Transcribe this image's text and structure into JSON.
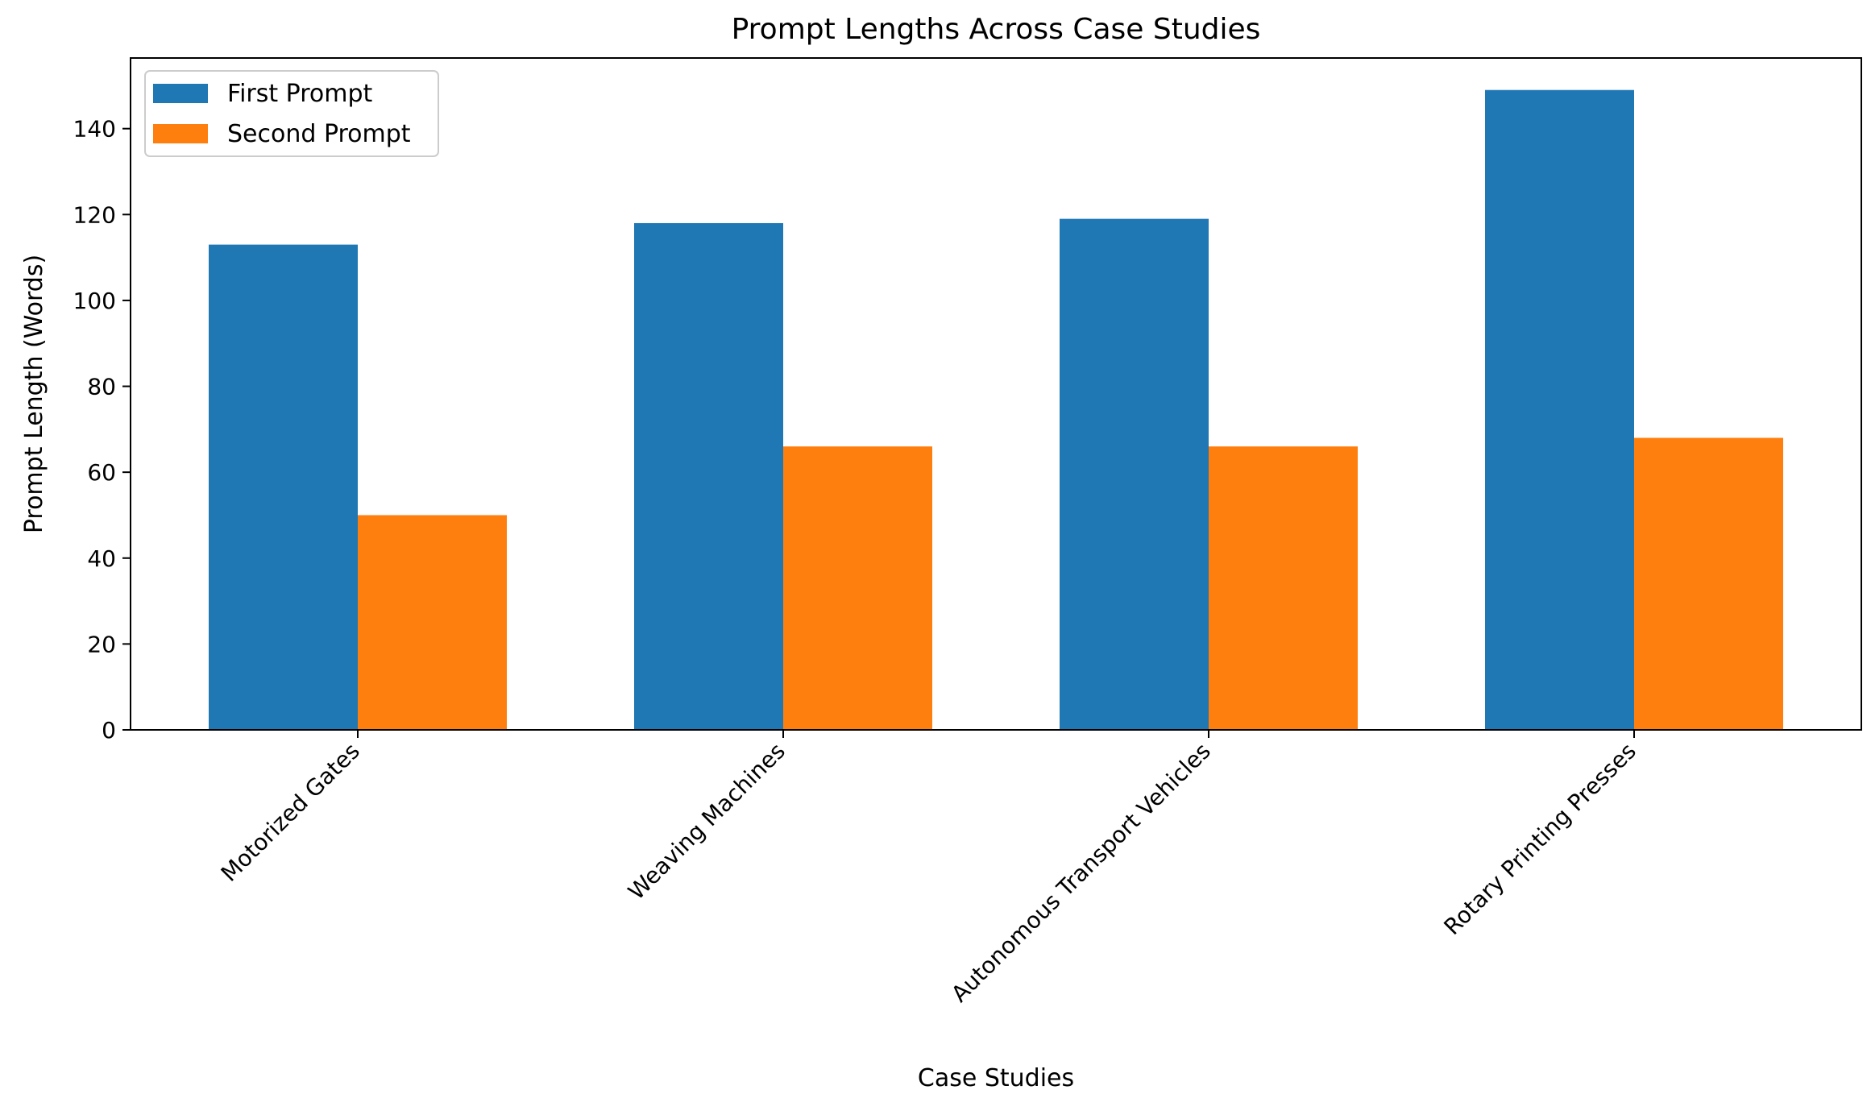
{
  "chart_data": {
    "type": "bar",
    "title": "Prompt Lengths Across Case Studies",
    "xlabel": "Case Studies",
    "ylabel": "Prompt Length (Words)",
    "categories": [
      "Motorized Gates",
      "Weaving Machines",
      "Autonomous Transport Vehicles",
      "Rotary Printing Presses"
    ],
    "series": [
      {
        "name": "First Prompt",
        "values": [
          113,
          118,
          119,
          149
        ],
        "color": "#1f77b4"
      },
      {
        "name": "Second Prompt",
        "values": [
          50,
          66,
          66,
          68
        ],
        "color": "#ff7f0e"
      }
    ],
    "ylim": [
      0,
      156.45
    ],
    "yticks": [
      0,
      20,
      40,
      60,
      80,
      100,
      120,
      140
    ],
    "legend": "top-left",
    "grid": false
  }
}
